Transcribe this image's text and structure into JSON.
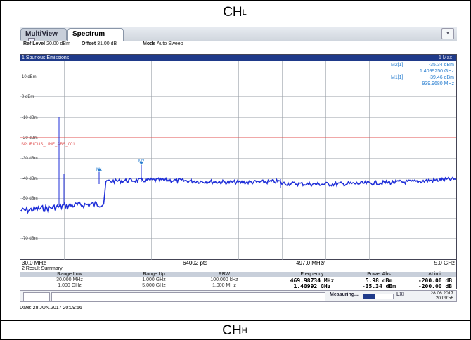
{
  "captions": {
    "top_main": "CH",
    "top_sub": "L",
    "bottom_main": "CH",
    "bottom_sub": "H"
  },
  "tabs": [
    {
      "label": "MultiView"
    },
    {
      "label": "Spectrum"
    }
  ],
  "info": {
    "ref_level_label": "Ref Level",
    "ref_level_value": "20.00 dBm",
    "offset_label": "Offset",
    "offset_value": "31.00 dB",
    "mode_label": "Mode",
    "mode_value": "Auto Sweep"
  },
  "diagram": {
    "title": "1 Spurious Emissions",
    "trace_label": "1 Max",
    "markers": [
      {
        "name": "M2[1]",
        "level": "-35.34 dBm",
        "freq": "1.4099250 GHz"
      },
      {
        "name": "M1[1]",
        "level": "-39.46 dBm",
        "freq": "939.9680 MHz"
      }
    ],
    "limit_label": "SPURIOUS_LINE_ABS_001",
    "y_labels": [
      "10 dBm",
      "0 dBm",
      "-10 dBm",
      "-20 dBm",
      "-30 dBm",
      "-40 dBm",
      "-50 dBm",
      "-70 dBm"
    ],
    "x_start": "30.0 MHz",
    "x_points": "64002 pts",
    "x_mid": "497.0 MHz/",
    "x_end": "5.0 GHz"
  },
  "summary": {
    "title": "2 Result Summary",
    "headers": [
      "Range Low",
      "Range Up",
      "RBW",
      "Frequency",
      "Power Abs",
      "ΔLimit"
    ],
    "rows": [
      [
        "30.000 MHz",
        "1.000 GHz",
        "100.000 kHz",
        "469.98734 MHz",
        "5.98 dBm",
        "-200.00 dB"
      ],
      [
        "1.000 GHz",
        "5.000 GHz",
        "1.000 MHz",
        "1.40992 GHz",
        "-35.34 dBm",
        "-200.00 dB"
      ]
    ]
  },
  "status": {
    "measuring": "Measuring...",
    "progress": 0.4,
    "lxi": "LXI",
    "date": "28.06.2017",
    "time": "20:09:56"
  },
  "footer_date": "Date: 28.JUN.2017  20:09:56",
  "colors": {
    "trace": "#1f2fd8",
    "limit": "#e05050",
    "title_bar": "#1f3a8a",
    "marker": "#2a7fd0"
  }
}
